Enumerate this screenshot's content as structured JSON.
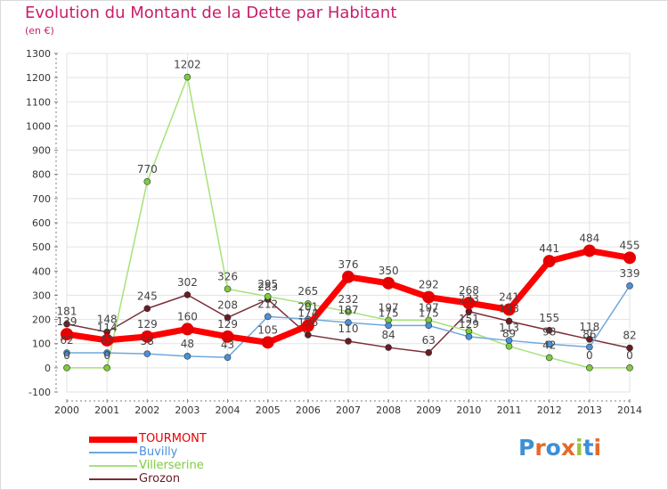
{
  "header": {
    "title": "Evolution du Montant de la Dette par Habitant",
    "subtitle": "(en €)"
  },
  "brand": {
    "text": "Proxiti"
  },
  "colors": {
    "title": "#c81e6b",
    "grid": "#e3e3e3",
    "axis": "#7f7f7f"
  },
  "chart_data": {
    "type": "line",
    "x": [
      "2000",
      "2001",
      "2002",
      "2003",
      "2004",
      "2005",
      "2006",
      "2007",
      "2008",
      "2009",
      "2010",
      "2011",
      "2012",
      "2013",
      "2014"
    ],
    "ylim": [
      -100,
      1300
    ],
    "yticks": [
      -100,
      0,
      100,
      200,
      300,
      400,
      500,
      600,
      700,
      800,
      900,
      1000,
      1100,
      1200,
      1300
    ],
    "grid": true,
    "legend_position": "bottom-left",
    "series": [
      {
        "name": "TOURMONT",
        "color": "#ff0000",
        "point_color": "#e60000",
        "width": 7,
        "marker": 7,
        "values": [
          139,
          114,
          129,
          160,
          129,
          105,
          174,
          376,
          350,
          292,
          268,
          241,
          441,
          484,
          455
        ],
        "labels": [
          "139",
          "114",
          "129",
          "160",
          "129",
          "105",
          "174",
          "376",
          "350",
          "292",
          "268",
          "241",
          "441",
          "484",
          "455"
        ]
      },
      {
        "name": "Buvilly",
        "color": "#6fa8dc",
        "point_color": "#4a90d9",
        "width": 1.5,
        "marker": 3.5,
        "values": [
          62,
          62,
          58,
          48,
          43,
          212,
          201,
          187,
          175,
          175,
          129,
          113,
          98,
          86,
          339
        ],
        "labels": [
          "62",
          "62",
          "58",
          "48",
          "43",
          "212",
          "201",
          "187",
          "175",
          "175",
          "129",
          "113",
          "98",
          "86",
          "339"
        ]
      },
      {
        "name": "Villerserine",
        "color": "#a6e27a",
        "point_color": "#7ccd3e",
        "width": 1.5,
        "marker": 3.5,
        "values": [
          0,
          0,
          770,
          1202,
          326,
          295,
          265,
          232,
          197,
          197,
          151,
          89,
          42,
          0,
          0
        ],
        "labels": [
          "0",
          "0",
          "770",
          "1202",
          "326",
          "295",
          "265",
          "232",
          "197",
          "197",
          "151",
          "89",
          "42",
          "0",
          "0"
        ]
      },
      {
        "name": "Grozon",
        "color": "#7a2e37",
        "point_color": "#6b1a22",
        "width": 1.5,
        "marker": 3.5,
        "values": [
          181,
          148,
          245,
          302,
          208,
          283,
          136,
          110,
          84,
          63,
          233,
          193,
          155,
          118,
          82
        ],
        "labels": [
          "181",
          "148",
          "245",
          "302",
          "208",
          "283",
          "136",
          "110",
          "84",
          "63",
          "233",
          "193",
          "155",
          "118",
          "82"
        ]
      }
    ]
  }
}
